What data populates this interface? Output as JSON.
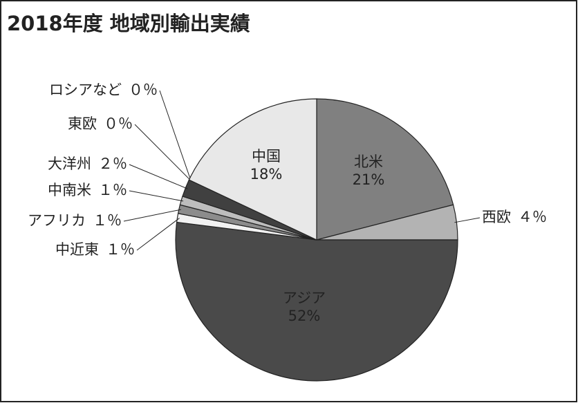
{
  "chart_data": {
    "type": "pie",
    "title": "2018年度 地域別輸出実績",
    "categories": [
      "北米",
      "西欧",
      "アジア",
      "中近東",
      "アフリカ",
      "中南米",
      "大洋州",
      "東欧",
      "ロシアなど",
      "中国"
    ],
    "values": [
      21,
      4,
      52,
      1,
      1,
      1,
      2,
      0,
      0,
      18
    ],
    "value_labels": [
      "21%",
      "４％",
      "52%",
      "１％",
      "１％",
      "１％",
      "２％",
      "０％",
      "０％",
      "18%"
    ],
    "colors": [
      "#808080",
      "#b3b3b3",
      "#4a4a4a",
      "#f2f2f2",
      "#8c8c8c",
      "#bdbdbd",
      "#404040",
      "#999999",
      "#cccccc",
      "#e8e8e8"
    ]
  }
}
